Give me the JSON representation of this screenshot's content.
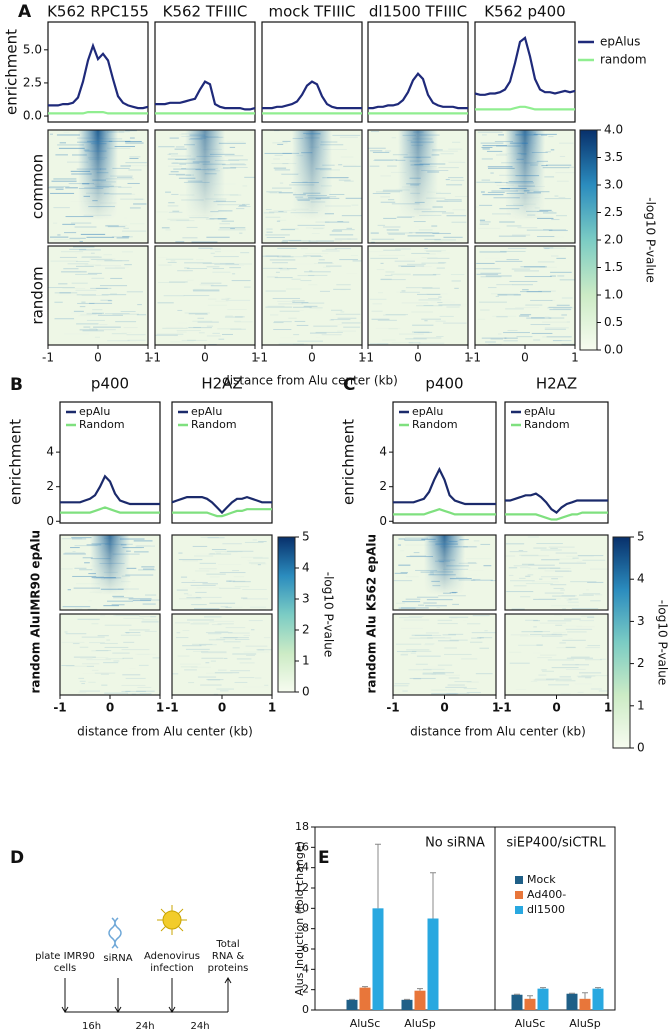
{
  "chart_data": [
    {
      "type": "line",
      "panel": "A",
      "ylabel": "enrichment",
      "xlabel": "distance from Alu center (kb)",
      "legend": "right",
      "x": [
        -1,
        -0.9,
        -0.8,
        -0.7,
        -0.6,
        -0.5,
        -0.4,
        -0.3,
        -0.2,
        -0.1,
        0,
        0.1,
        0.2,
        0.3,
        0.4,
        0.5,
        0.6,
        0.7,
        0.8,
        0.9,
        1
      ],
      "xlim": [
        -1,
        1
      ],
      "xticks": [
        -1,
        0,
        1
      ],
      "ylim": [
        -0.45,
        7.1
      ],
      "yticks": [
        {
          "value": 0,
          "label": "0.0"
        },
        2.5,
        {
          "value": 5,
          "label": "5.0"
        }
      ],
      "series": [
        {
          "name": "epAlus",
          "color": "#1f2a7a"
        },
        {
          "name": "random",
          "color": "#90ee90"
        }
      ],
      "rows": [
        "common",
        "random"
      ],
      "colorbar": {
        "label": "-log10 P-value",
        "lim": [
          0,
          4
        ],
        "ticks": [
          {
            "value": 0,
            "label": "0.0"
          },
          0.5,
          {
            "value": 1,
            "label": "1.0"
          },
          1.5,
          {
            "value": 2,
            "label": "2.0"
          },
          2.5,
          {
            "value": 3,
            "label": "3.0"
          },
          3.5,
          {
            "value": 4,
            "label": "4.0"
          }
        ]
      },
      "panels": [
        {
          "title": "K562 RPC155",
          "values": [
            [
              0.8,
              0.8,
              0.8,
              0.9,
              0.9,
              1.0,
              1.4,
              2.6,
              4.2,
              5.3,
              4.3,
              4.7,
              4.2,
              2.8,
              1.5,
              1.0,
              0.8,
              0.7,
              0.6,
              0.6,
              0.7
            ],
            [
              0.2,
              0.2,
              0.2,
              0.2,
              0.2,
              0.2,
              0.2,
              0.2,
              0.3,
              0.3,
              0.3,
              0.3,
              0.2,
              0.2,
              0.2,
              0.2,
              0.2,
              0.2,
              0.2,
              0.2,
              0.2
            ]
          ]
        },
        {
          "title": "K562 TFIIIC",
          "values": [
            [
              0.9,
              0.9,
              0.9,
              1.0,
              1.0,
              1.0,
              1.1,
              1.2,
              1.3,
              2.0,
              2.6,
              2.4,
              0.9,
              0.7,
              0.6,
              0.6,
              0.6,
              0.6,
              0.5,
              0.5,
              0.6
            ],
            [
              0.2,
              0.2,
              0.2,
              0.2,
              0.2,
              0.2,
              0.2,
              0.2,
              0.2,
              0.2,
              0.2,
              0.2,
              0.2,
              0.2,
              0.2,
              0.2,
              0.2,
              0.2,
              0.2,
              0.2,
              0.2
            ]
          ]
        },
        {
          "title": "mock TFIIIC",
          "values": [
            [
              0.6,
              0.6,
              0.6,
              0.7,
              0.7,
              0.8,
              0.9,
              1.1,
              1.6,
              2.3,
              2.6,
              2.4,
              1.5,
              0.9,
              0.7,
              0.6,
              0.6,
              0.6,
              0.6,
              0.6,
              0.6
            ],
            [
              0.2,
              0.2,
              0.2,
              0.2,
              0.2,
              0.2,
              0.2,
              0.2,
              0.2,
              0.2,
              0.2,
              0.2,
              0.2,
              0.2,
              0.2,
              0.2,
              0.2,
              0.2,
              0.2,
              0.2,
              0.2
            ]
          ]
        },
        {
          "title": "dl1500 TFIIIC",
          "values": [
            [
              0.6,
              0.6,
              0.7,
              0.7,
              0.8,
              0.8,
              0.9,
              1.2,
              1.8,
              2.7,
              3.2,
              2.8,
              1.6,
              1.0,
              0.8,
              0.7,
              0.7,
              0.7,
              0.6,
              0.6,
              0.6
            ],
            [
              0.2,
              0.2,
              0.2,
              0.2,
              0.2,
              0.2,
              0.2,
              0.2,
              0.2,
              0.2,
              0.2,
              0.2,
              0.2,
              0.2,
              0.2,
              0.2,
              0.2,
              0.2,
              0.2,
              0.2,
              0.2
            ]
          ]
        },
        {
          "title": "K562 p400",
          "values": [
            [
              1.7,
              1.6,
              1.6,
              1.7,
              1.7,
              1.8,
              2.0,
              2.6,
              4.0,
              5.6,
              5.9,
              4.5,
              2.8,
              2.0,
              1.8,
              1.8,
              1.7,
              1.8,
              1.9,
              1.8,
              1.9
            ],
            [
              0.5,
              0.5,
              0.5,
              0.5,
              0.5,
              0.5,
              0.5,
              0.5,
              0.6,
              0.7,
              0.7,
              0.6,
              0.5,
              0.5,
              0.5,
              0.5,
              0.5,
              0.5,
              0.5,
              0.5,
              0.5
            ]
          ]
        }
      ]
    },
    {
      "type": "line",
      "panel": "B",
      "ylabel": "enrichment",
      "xlabel": "distance from Alu center (kb)",
      "legend": "inside",
      "x": [
        -1,
        -0.9,
        -0.8,
        -0.7,
        -0.6,
        -0.5,
        -0.4,
        -0.3,
        -0.2,
        -0.1,
        0,
        0.1,
        0.2,
        0.3,
        0.4,
        0.5,
        0.6,
        0.7,
        0.8,
        0.9,
        1
      ],
      "xlim": [
        -1,
        1
      ],
      "xticks": [
        -1,
        0,
        1
      ],
      "ylim": [
        -0.1,
        6.9
      ],
      "yticks": [
        0,
        2,
        4
      ],
      "series": [
        {
          "name": "epAlu",
          "color": "#1b2a6b"
        },
        {
          "name": "Random",
          "color": "#7fe07f"
        }
      ],
      "rows": [
        "IMR90 epAlu",
        "random Alu"
      ],
      "colorbar": {
        "label": "-log10 P-value",
        "lim": [
          0,
          5
        ],
        "ticks": [
          0,
          1,
          2,
          3,
          4,
          5
        ]
      },
      "panels": [
        {
          "title": "p400",
          "values": [
            [
              1.1,
              1.1,
              1.1,
              1.1,
              1.1,
              1.2,
              1.3,
              1.5,
              2.0,
              2.6,
              2.3,
              1.6,
              1.2,
              1.1,
              1.0,
              1.0,
              1.0,
              1.0,
              1.0,
              1.0,
              1.0
            ],
            [
              0.5,
              0.5,
              0.5,
              0.5,
              0.5,
              0.5,
              0.5,
              0.6,
              0.7,
              0.8,
              0.7,
              0.6,
              0.5,
              0.5,
              0.5,
              0.5,
              0.5,
              0.5,
              0.5,
              0.5,
              0.5
            ]
          ]
        },
        {
          "title": "H2AZ",
          "values": [
            [
              1.1,
              1.2,
              1.3,
              1.4,
              1.4,
              1.4,
              1.4,
              1.3,
              1.1,
              0.8,
              0.5,
              0.8,
              1.1,
              1.3,
              1.3,
              1.4,
              1.3,
              1.2,
              1.1,
              1.1,
              1.1
            ],
            [
              0.5,
              0.5,
              0.5,
              0.5,
              0.5,
              0.5,
              0.5,
              0.5,
              0.4,
              0.3,
              0.3,
              0.4,
              0.5,
              0.6,
              0.6,
              0.7,
              0.7,
              0.7,
              0.7,
              0.7,
              0.7
            ]
          ]
        }
      ]
    },
    {
      "type": "line",
      "panel": "C",
      "ylabel": "enrichment",
      "xlabel": "distance from Alu center (kb)",
      "legend": "inside",
      "x": [
        -1,
        -0.9,
        -0.8,
        -0.7,
        -0.6,
        -0.5,
        -0.4,
        -0.3,
        -0.2,
        -0.1,
        0,
        0.1,
        0.2,
        0.3,
        0.4,
        0.5,
        0.6,
        0.7,
        0.8,
        0.9,
        1
      ],
      "xlim": [
        -1,
        1
      ],
      "xticks": [
        -1,
        0,
        1
      ],
      "ylim": [
        -0.1,
        6.9
      ],
      "yticks": [
        0,
        2,
        4
      ],
      "series": [
        {
          "name": "epAlu",
          "color": "#1b2a6b"
        },
        {
          "name": "Random",
          "color": "#7fe07f"
        }
      ],
      "rows": [
        "K562 epAlu",
        "random Alu"
      ],
      "colorbar": {
        "label": "-log10 P-value",
        "lim": [
          0,
          5
        ],
        "ticks": [
          0,
          1,
          2,
          3,
          4,
          5
        ]
      },
      "panels": [
        {
          "title": "p400",
          "values": [
            [
              1.1,
              1.1,
              1.1,
              1.1,
              1.1,
              1.2,
              1.3,
              1.7,
              2.4,
              3.0,
              2.4,
              1.5,
              1.2,
              1.1,
              1.0,
              1.0,
              1.0,
              1.0,
              1.0,
              1.0,
              1.0
            ],
            [
              0.4,
              0.4,
              0.4,
              0.4,
              0.4,
              0.4,
              0.4,
              0.5,
              0.6,
              0.7,
              0.6,
              0.5,
              0.4,
              0.4,
              0.4,
              0.4,
              0.4,
              0.4,
              0.4,
              0.4,
              0.4
            ]
          ]
        },
        {
          "title": "H2AZ",
          "values": [
            [
              1.2,
              1.2,
              1.3,
              1.4,
              1.5,
              1.5,
              1.6,
              1.4,
              1.1,
              0.7,
              0.5,
              0.8,
              1.0,
              1.1,
              1.2,
              1.2,
              1.2,
              1.2,
              1.2,
              1.2,
              1.2
            ],
            [
              0.4,
              0.4,
              0.4,
              0.4,
              0.4,
              0.4,
              0.4,
              0.3,
              0.2,
              0.1,
              0.1,
              0.2,
              0.3,
              0.4,
              0.4,
              0.5,
              0.5,
              0.5,
              0.5,
              0.5,
              0.5
            ]
          ]
        }
      ]
    },
    {
      "type": "bar",
      "panel": "E",
      "ylabel": "Alus Induction (fold change)",
      "categories": [
        "AluSc",
        "AluSp",
        "AluSc",
        "AluSp"
      ],
      "groups": [
        "No siRNA",
        "siEP400/siCTRL"
      ],
      "ylim": [
        0,
        18
      ],
      "yticks": [
        0,
        2,
        4,
        6,
        8,
        10,
        12,
        14,
        16,
        18
      ],
      "series": [
        {
          "name": "Mock",
          "color": "#1f5f87",
          "values": [
            1.0,
            1.0,
            1.5,
            1.6
          ],
          "errors": [
            0.05,
            0.05,
            0.05,
            0.05
          ]
        },
        {
          "name": "Ad400-",
          "color": "#e8763a",
          "values": [
            2.2,
            1.9,
            1.1,
            1.1
          ],
          "errors": [
            0.1,
            0.2,
            0.3,
            0.6
          ]
        },
        {
          "name": "dl1500",
          "color": "#29a8e0",
          "values": [
            10.0,
            9.0,
            2.1,
            2.1
          ],
          "errors": [
            6.3,
            4.5,
            0.1,
            0.1
          ]
        }
      ]
    }
  ],
  "diagram": {
    "panel": "D",
    "steps": [
      {
        "label": [
          "plate IMR90",
          "cells"
        ]
      },
      {
        "label": [
          "siRNA"
        ]
      },
      {
        "label": [
          "Adenovirus",
          "infection"
        ]
      },
      {
        "label": [
          "Total",
          "RNA &",
          "proteins"
        ]
      }
    ],
    "intervals": [
      "16h",
      "24h",
      "24h"
    ]
  }
}
